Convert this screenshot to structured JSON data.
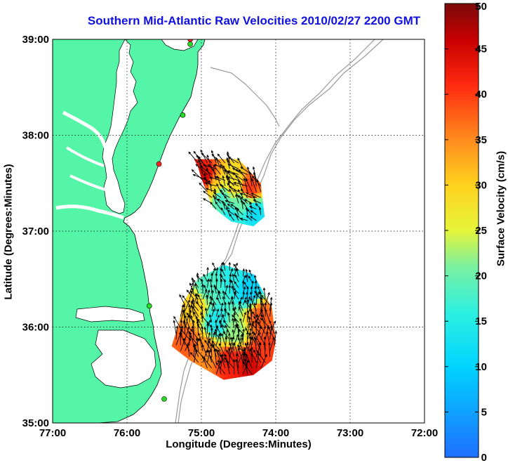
{
  "title": "Southern Mid-Atlantic Raw Velocities 2010/02/27 2200 GMT",
  "xlabel": "Longitude (Degrees:Minutes)",
  "ylabel": "Latitude (Degrees:Minutes)",
  "colorbar_label": "Surface Velocity (cm/s)",
  "x_ticks": [
    "77:00",
    "76:00",
    "75:00",
    "74:00",
    "73:00",
    "72:00"
  ],
  "y_ticks": [
    "39:00",
    "38:00",
    "37:00",
    "36:00",
    "35:00"
  ],
  "colorbar_ticks": [
    "50",
    "45",
    "40",
    "35",
    "30",
    "25",
    "20",
    "15",
    "10",
    "5",
    "0"
  ],
  "colors": {
    "land": "#55f5a8",
    "coastline": "#000000",
    "bathymetry": "#9a9a9a",
    "grid": "#000000",
    "title": "#1010e0",
    "station_active": "#22dd22",
    "station_inactive": "#ff2020"
  },
  "chart_data": {
    "type": "map",
    "xlim": [
      -77,
      -72
    ],
    "ylim": [
      35,
      39
    ],
    "colorbar_range": [
      0,
      50
    ],
    "grid": true,
    "regions": [
      {
        "name": "",
        "polygon": [
          [
            -75.1,
            37.75
          ],
          [
            -74.5,
            37.75
          ],
          [
            -74.2,
            37.5
          ],
          [
            -74.15,
            37.15
          ],
          [
            -74.3,
            37.05
          ],
          [
            -74.6,
            37.1
          ],
          [
            -74.85,
            37.25
          ],
          [
            -75.0,
            37.55
          ],
          [
            -75.05,
            37.68
          ]
        ],
        "speed_samples": [
          {
            "lon": -74.95,
            "lat": 37.55,
            "speed": 45
          },
          {
            "lon": -74.85,
            "lat": 37.45,
            "speed": 30
          },
          {
            "lon": -74.75,
            "lat": 37.35,
            "speed": 18
          },
          {
            "lon": -74.55,
            "lat": 37.5,
            "speed": 28
          },
          {
            "lon": -74.35,
            "lat": 37.45,
            "speed": 40
          },
          {
            "lon": -74.45,
            "lat": 37.3,
            "speed": 20
          },
          {
            "lon": -74.3,
            "lat": 37.2,
            "speed": 12
          },
          {
            "lon": -74.6,
            "lat": 37.15,
            "speed": 15
          }
        ]
      },
      {
        "name": "",
        "polygon": [
          [
            -75.25,
            36.25
          ],
          [
            -75.05,
            36.5
          ],
          [
            -74.7,
            36.65
          ],
          [
            -74.3,
            36.55
          ],
          [
            -74.05,
            36.2
          ],
          [
            -74.0,
            35.85
          ],
          [
            -74.05,
            35.65
          ],
          [
            -74.3,
            35.5
          ],
          [
            -74.7,
            35.45
          ],
          [
            -75.15,
            35.65
          ],
          [
            -75.4,
            35.8
          ],
          [
            -75.3,
            36.05
          ]
        ],
        "speed_samples": [
          {
            "lon": -75.1,
            "lat": 36.2,
            "speed": 30
          },
          {
            "lon": -74.9,
            "lat": 36.45,
            "speed": 18
          },
          {
            "lon": -74.6,
            "lat": 36.55,
            "speed": 15
          },
          {
            "lon": -74.35,
            "lat": 36.4,
            "speed": 10
          },
          {
            "lon": -74.2,
            "lat": 36.1,
            "speed": 38
          },
          {
            "lon": -74.8,
            "lat": 36.05,
            "speed": 14
          },
          {
            "lon": -74.55,
            "lat": 35.95,
            "speed": 22
          },
          {
            "lon": -75.2,
            "lat": 35.85,
            "speed": 38
          },
          {
            "lon": -74.95,
            "lat": 35.75,
            "speed": 35
          },
          {
            "lon": -74.6,
            "lat": 35.65,
            "speed": 42
          },
          {
            "lon": -74.35,
            "lat": 35.6,
            "speed": 45
          },
          {
            "lon": -74.15,
            "lat": 35.75,
            "speed": 40
          }
        ]
      }
    ],
    "stations": [
      {
        "lon": -75.15,
        "lat": 39.0,
        "status": "inactive"
      },
      {
        "lon": -75.15,
        "lat": 38.95,
        "status": "active"
      },
      {
        "lon": -75.25,
        "lat": 38.21,
        "status": "active"
      },
      {
        "lon": -75.57,
        "lat": 37.7,
        "status": "inactive"
      },
      {
        "lon": -75.7,
        "lat": 36.22,
        "status": "active"
      },
      {
        "lon": -75.5,
        "lat": 35.25,
        "status": "active"
      }
    ]
  }
}
